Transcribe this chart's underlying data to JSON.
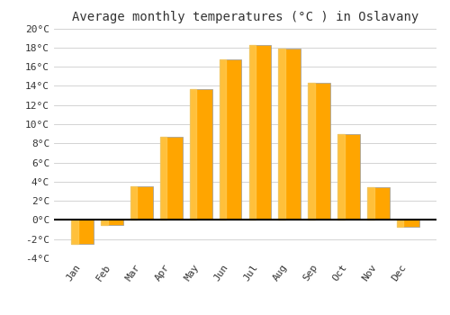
{
  "months": [
    "Jan",
    "Feb",
    "Mar",
    "Apr",
    "May",
    "Jun",
    "Jul",
    "Aug",
    "Sep",
    "Oct",
    "Nov",
    "Dec"
  ],
  "values": [
    -2.5,
    -0.5,
    3.5,
    8.7,
    13.7,
    16.8,
    18.3,
    17.9,
    14.3,
    9.0,
    3.4,
    -0.7
  ],
  "bar_color": "#FFA500",
  "bar_edge_color": "#999999",
  "title": "Average monthly temperatures (°C ) in Oslavany",
  "ylim": [
    -4,
    20
  ],
  "yticks": [
    -4,
    -2,
    0,
    2,
    4,
    6,
    8,
    10,
    12,
    14,
    16,
    18,
    20
  ],
  "ytick_labels": [
    "-4°C",
    "-2°C",
    "0°C",
    "2°C",
    "4°C",
    "6°C",
    "8°C",
    "10°C",
    "12°C",
    "14°C",
    "16°C",
    "18°C",
    "20°C"
  ],
  "background_color": "#ffffff",
  "grid_color": "#cccccc",
  "title_fontsize": 10,
  "tick_fontsize": 8,
  "bar_width": 0.75
}
